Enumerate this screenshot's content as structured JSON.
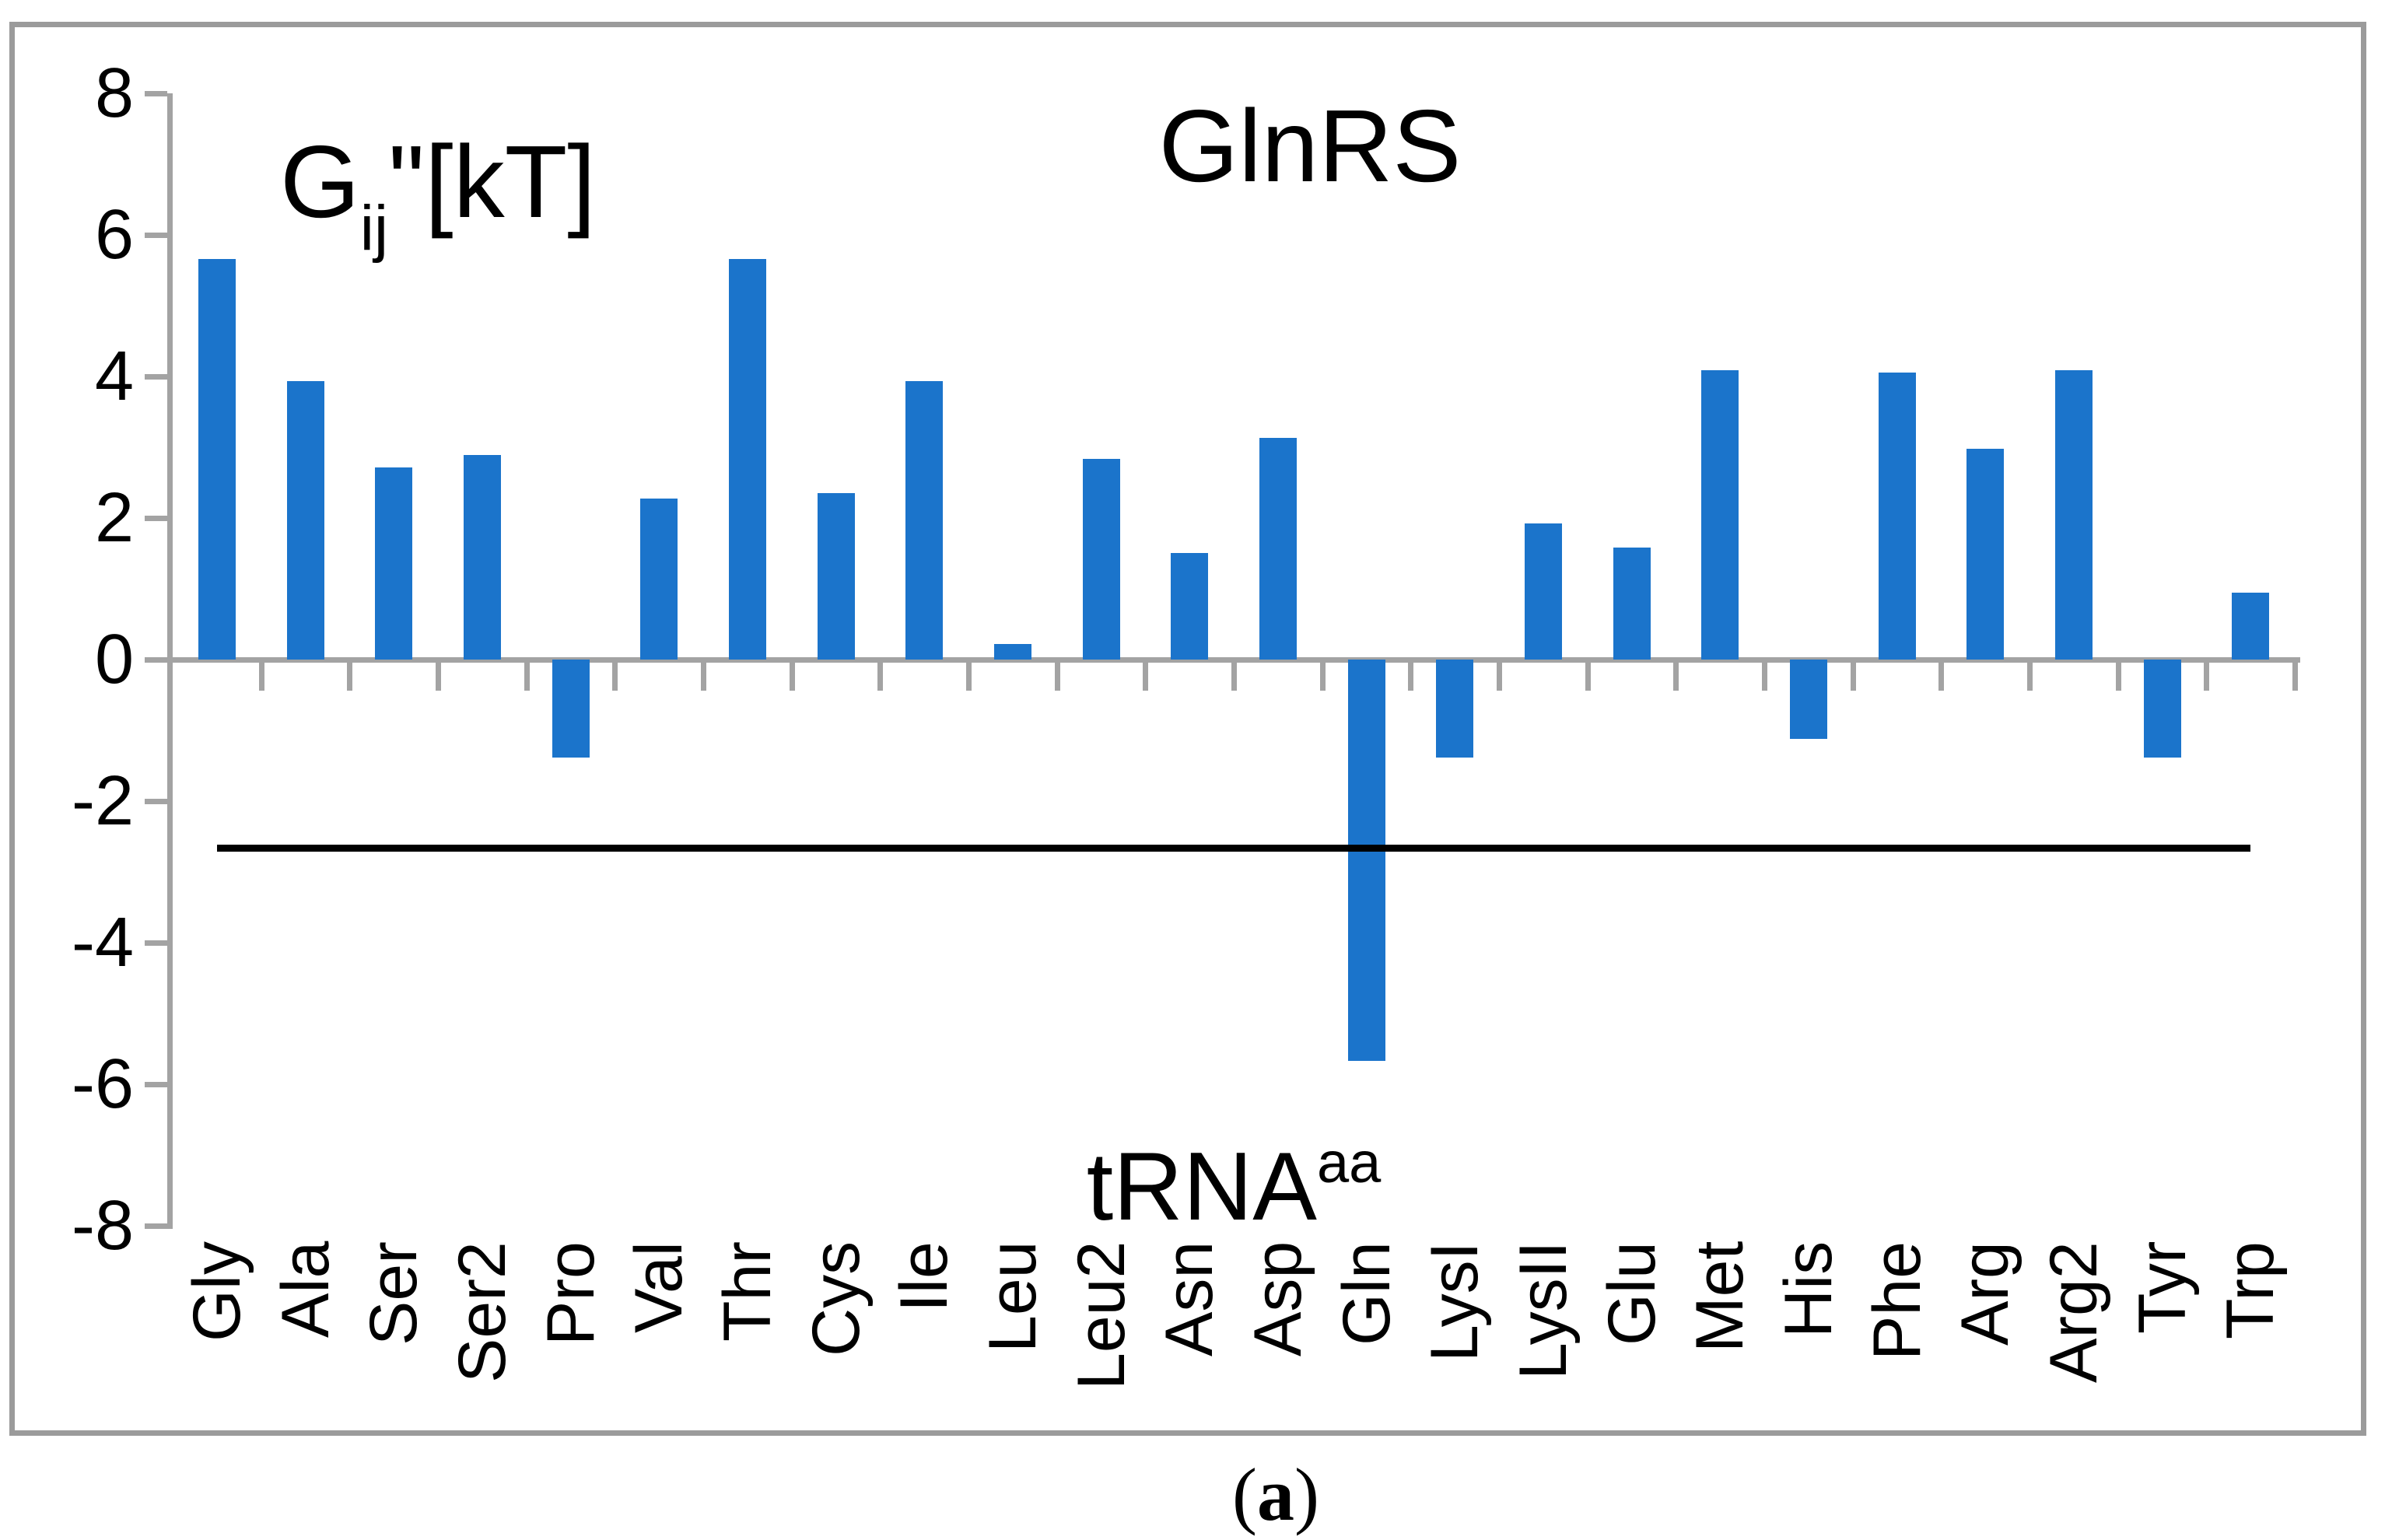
{
  "figure": {
    "caption": {
      "open": "(",
      "letter": "a",
      "close": ")"
    }
  },
  "chart_data": {
    "type": "bar",
    "title": "GlnRS",
    "y_axis_title": {
      "base": "G",
      "sub": "ij",
      "rest": "\"[kT]"
    },
    "x_axis_title": {
      "base": "tRNA",
      "sup": "aa"
    },
    "categories": [
      "Gly",
      "Ala",
      "Ser",
      "Ser2",
      "Pro",
      "Val",
      "Thr",
      "Cys",
      "Ile",
      "Leu",
      "Leu2",
      "Asn",
      "Asp",
      "Gln",
      "LysI",
      "LysII",
      "Glu",
      "Met",
      "His",
      "Phe",
      "Arg",
      "Arg2",
      "Tyr",
      "Trp"
    ],
    "values": [
      5.66,
      3.93,
      2.71,
      2.89,
      -1.38,
      2.28,
      5.66,
      2.35,
      3.93,
      0.22,
      2.84,
      1.5,
      3.13,
      -5.67,
      -1.38,
      1.92,
      1.58,
      4.09,
      -1.12,
      4.05,
      2.98,
      4.09,
      -1.38,
      0.95
    ],
    "y_ticks": [
      8,
      6,
      4,
      2,
      0,
      -2,
      -4,
      -6,
      -8
    ],
    "ylim": [
      -8,
      8
    ],
    "reference_line_y": -2.66,
    "grid": false,
    "legend": "none",
    "bar_color": "#1b74cb",
    "axis_color": "#a3a3a3",
    "reference_line_color": "#000000",
    "text_color": "#000000"
  }
}
